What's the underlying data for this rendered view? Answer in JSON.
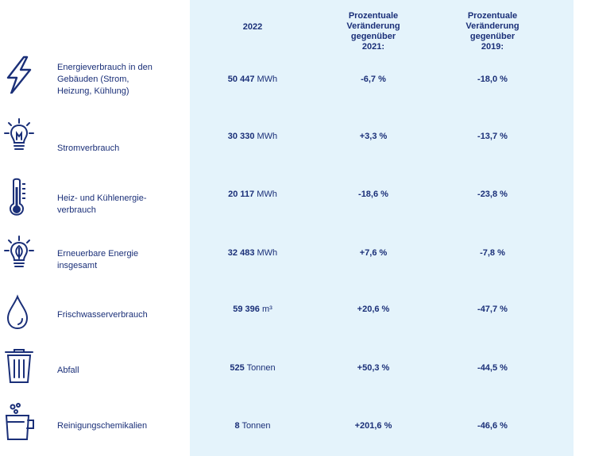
{
  "header": {
    "year": "2022",
    "change_2021": [
      "Prozentuale",
      "Veränderung",
      "gegenüber",
      "2021:"
    ],
    "change_2019": [
      "Prozentuale",
      "Veränderung",
      "gegenüber",
      "2019:"
    ]
  },
  "rows": [
    {
      "icon": "lightning-icon",
      "label": [
        "Energieverbrauch in den",
        "Gebäuden (Strom,",
        "Heizung, Kühlung)"
      ],
      "value": "50 447",
      "unit": "MWh",
      "c2021": "-6,7 %",
      "c2019": "-18,0 %"
    },
    {
      "icon": "lightbulb-icon",
      "label": [
        "Stromverbrauch"
      ],
      "value": "30 330",
      "unit": "MWh",
      "c2021": "+3,3 %",
      "c2019": "-13,7 %"
    },
    {
      "icon": "thermometer-icon",
      "label": [
        "Heiz- und Kühlenergie-",
        "verbrauch"
      ],
      "value": "20 117",
      "unit": "MWh",
      "c2021": "-18,6 %",
      "c2019": "-23,8 %"
    },
    {
      "icon": "leaf-bulb-icon",
      "label": [
        "Erneuerbare Energie",
        "insgesamt"
      ],
      "value": "32 483",
      "unit": "MWh",
      "c2021": "+7,6 %",
      "c2019": "-7,8 %"
    },
    {
      "icon": "water-drop-icon",
      "label": [
        "Frischwasserverbrauch"
      ],
      "value": "59 396",
      "unit": "m³",
      "c2021": "+20,6 %",
      "c2019": "-47,7 %"
    },
    {
      "icon": "trash-bin-icon",
      "label": [
        "Abfall"
      ],
      "value": "525",
      "unit": "Tonnen",
      "c2021": "+50,3 %",
      "c2019": "-44,5 %"
    },
    {
      "icon": "cleaning-bucket-icon",
      "label": [
        "Reinigungschemikalien"
      ],
      "value": "8",
      "unit": "Tonnen",
      "c2021": "+201,6 %",
      "c2019": "-46,6 %"
    }
  ]
}
